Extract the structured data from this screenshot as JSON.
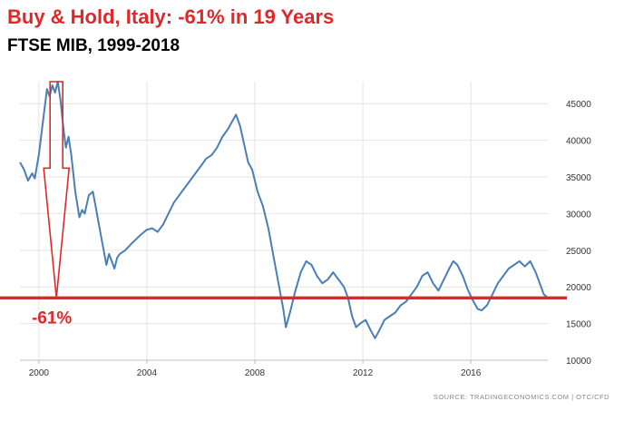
{
  "chart_data": {
    "type": "line",
    "title": "Buy & Hold, Italy: -61% in 19 Years",
    "subtitle": "FTSE MIB, 1999-2018",
    "xlabel": "",
    "ylabel": "",
    "xlim": [
      1999.3,
      2018.85
    ],
    "ylim": [
      10000,
      48000
    ],
    "x_ticks": [
      2000,
      2004,
      2008,
      2012,
      2016
    ],
    "y_ticks": [
      10000,
      15000,
      20000,
      25000,
      30000,
      35000,
      40000,
      45000
    ],
    "grid": true,
    "series": [
      {
        "color": "#4a7fb5",
        "x": [
          1999.3,
          1999.45,
          1999.6,
          1999.75,
          1999.85,
          2000.0,
          2000.1,
          2000.2,
          2000.3,
          2000.4,
          2000.5,
          2000.6,
          2000.7,
          2000.8,
          2000.9,
          2001.0,
          2001.1,
          2001.2,
          2001.35,
          2001.5,
          2001.6,
          2001.7,
          2001.85,
          2002.0,
          2002.1,
          2002.25,
          2002.4,
          2002.5,
          2002.6,
          2002.7,
          2002.8,
          2002.9,
          2003.0,
          2003.2,
          2003.4,
          2003.6,
          2003.8,
          2004.0,
          2004.2,
          2004.4,
          2004.6,
          2004.8,
          2005.0,
          2005.2,
          2005.4,
          2005.6,
          2005.8,
          2006.0,
          2006.2,
          2006.4,
          2006.6,
          2006.8,
          2007.0,
          2007.15,
          2007.3,
          2007.45,
          2007.6,
          2007.75,
          2007.9,
          2008.1,
          2008.3,
          2008.5,
          2008.7,
          2008.9,
          2009.05,
          2009.15,
          2009.3,
          2009.5,
          2009.7,
          2009.9,
          2010.1,
          2010.3,
          2010.5,
          2010.7,
          2010.9,
          2011.1,
          2011.3,
          2011.45,
          2011.6,
          2011.75,
          2011.9,
          2012.1,
          2012.3,
          2012.45,
          2012.6,
          2012.8,
          2013.0,
          2013.2,
          2013.4,
          2013.6,
          2013.8,
          2014.0,
          2014.2,
          2014.4,
          2014.6,
          2014.8,
          2015.0,
          2015.2,
          2015.35,
          2015.5,
          2015.7,
          2015.9,
          2016.1,
          2016.25,
          2016.4,
          2016.6,
          2016.8,
          2017.0,
          2017.2,
          2017.4,
          2017.6,
          2017.8,
          2018.0,
          2018.2,
          2018.4,
          2018.55,
          2018.7,
          2018.85
        ],
        "y": [
          37000,
          36000,
          34500,
          35500,
          34800,
          38000,
          41000,
          44000,
          47000,
          46000,
          47500,
          46500,
          48000,
          45500,
          42000,
          39000,
          40500,
          38000,
          33000,
          29500,
          30500,
          30000,
          32500,
          33000,
          31000,
          28000,
          25000,
          23000,
          24500,
          23500,
          22500,
          24000,
          24500,
          25000,
          25800,
          26500,
          27200,
          27800,
          28000,
          27500,
          28500,
          30000,
          31500,
          32500,
          33500,
          34500,
          35500,
          36500,
          37500,
          38000,
          39000,
          40500,
          41500,
          42500,
          43500,
          42000,
          39500,
          37000,
          36000,
          33000,
          31000,
          28000,
          24000,
          20000,
          17000,
          14500,
          16500,
          19500,
          22000,
          23500,
          23000,
          21500,
          20500,
          21000,
          22000,
          21000,
          20000,
          18500,
          16000,
          14500,
          15000,
          15500,
          14000,
          13000,
          14000,
          15500,
          16000,
          16500,
          17500,
          18000,
          19000,
          20000,
          21500,
          22000,
          20500,
          19500,
          21000,
          22500,
          23500,
          23000,
          21500,
          19500,
          18000,
          17000,
          16800,
          17500,
          19000,
          20500,
          21500,
          22500,
          23000,
          23500,
          22800,
          23500,
          22000,
          20500,
          19000,
          18500
        ]
      }
    ],
    "annotations": [
      {
        "type": "hline",
        "y": 18500,
        "color": "#e0282a"
      },
      {
        "type": "arrow",
        "x": 2000.65,
        "from": 48000,
        "to": 18500,
        "color": "#e0282a"
      },
      {
        "type": "text",
        "text": "-61%",
        "x": 1999.5,
        "y": 16500,
        "color": "#e0282a"
      }
    ],
    "source": "SOURCE:  TRADINGECONOMICS.COM  |  OTC/CFD"
  }
}
